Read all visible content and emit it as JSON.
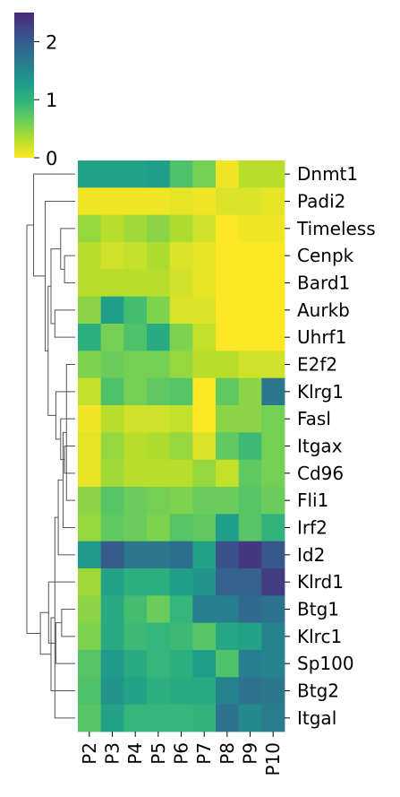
{
  "chart_data": {
    "type": "heatmap",
    "title": "",
    "xlabel": "",
    "ylabel": "",
    "colormap": "viridis_r",
    "colorbar": {
      "range": [
        0,
        2.5
      ],
      "ticks": [
        0,
        1,
        2
      ],
      "tick_labels": [
        "0",
        "1",
        "2"
      ]
    },
    "columns": [
      "P2",
      "P3",
      "P4",
      "P5",
      "P6",
      "P7",
      "P8",
      "P9",
      "P10"
    ],
    "rows": [
      "Dnmt1",
      "Padi2",
      "Timeless",
      "Cenpk",
      "Bard1",
      "Aurkb",
      "Uhrf1",
      "E2f2",
      "Klrg1",
      "Fasl",
      "Itgax",
      "Cd96",
      "Fli1",
      "Irf2",
      "Id2",
      "Klrd1",
      "Btg1",
      "Klrc1",
      "Sp100",
      "Btg2",
      "Itgal"
    ],
    "values": [
      [
        1.2,
        1.2,
        1.2,
        1.25,
        0.8,
        0.6,
        0.05,
        0.3,
        0.3
      ],
      [
        0.05,
        0.05,
        0.05,
        0.05,
        0.1,
        0.05,
        0.15,
        0.15,
        0.1
      ],
      [
        0.45,
        0.3,
        0.4,
        0.5,
        0.35,
        0.2,
        0.0,
        0.05,
        0.05
      ],
      [
        0.3,
        0.2,
        0.25,
        0.35,
        0.15,
        0.1,
        0.0,
        0.0,
        0.0
      ],
      [
        0.3,
        0.3,
        0.3,
        0.3,
        0.2,
        0.1,
        0.0,
        0.0,
        0.0
      ],
      [
        0.5,
        1.25,
        0.85,
        0.55,
        0.15,
        0.15,
        0.0,
        0.0,
        0.0
      ],
      [
        1.05,
        0.6,
        0.8,
        1.1,
        0.55,
        0.25,
        0.0,
        0.0,
        0.0
      ],
      [
        0.55,
        0.65,
        0.6,
        0.6,
        0.45,
        0.3,
        0.3,
        0.2,
        0.2
      ],
      [
        0.25,
        0.8,
        0.6,
        0.7,
        0.75,
        0.0,
        0.7,
        0.5,
        1.7
      ],
      [
        0.05,
        0.3,
        0.2,
        0.2,
        0.25,
        0.0,
        0.5,
        0.5,
        0.6
      ],
      [
        0.1,
        0.45,
        0.3,
        0.35,
        0.45,
        0.15,
        0.7,
        0.9,
        0.6
      ],
      [
        0.1,
        0.4,
        0.3,
        0.3,
        0.3,
        0.45,
        0.25,
        0.7,
        0.6
      ],
      [
        0.5,
        0.75,
        0.65,
        0.6,
        0.55,
        0.65,
        0.65,
        0.75,
        0.65
      ],
      [
        0.45,
        0.7,
        0.65,
        0.55,
        0.75,
        0.7,
        1.25,
        0.75,
        1.0
      ],
      [
        1.3,
        2.0,
        1.7,
        1.7,
        1.8,
        1.2,
        2.1,
        2.35,
        2.05
      ],
      [
        0.4,
        1.2,
        1.05,
        1.05,
        1.25,
        1.35,
        1.95,
        1.95,
        2.3
      ],
      [
        0.5,
        1.1,
        0.85,
        0.65,
        0.95,
        1.6,
        1.6,
        1.85,
        1.75
      ],
      [
        0.55,
        1.1,
        0.9,
        0.95,
        0.9,
        0.75,
        1.15,
        1.2,
        1.55
      ],
      [
        0.75,
        1.3,
        1.1,
        0.95,
        1.05,
        1.25,
        0.8,
        1.6,
        1.55
      ],
      [
        0.8,
        1.35,
        1.2,
        1.05,
        1.1,
        1.1,
        1.55,
        1.75,
        1.7
      ],
      [
        0.75,
        1.2,
        0.95,
        0.95,
        0.95,
        1.0,
        1.75,
        1.5,
        1.65
      ]
    ],
    "dendrogram": {
      "side": "left",
      "merges": [
        [
          7,
          12,
          0.18
        ],
        [
          13,
          21,
          0.25
        ],
        [
          14,
          22,
          0.35
        ],
        [
          20,
          23,
          0.42
        ],
        [
          19,
          24,
          0.5
        ],
        [
          16,
          17,
          0.28
        ],
        [
          18,
          26,
          0.4
        ],
        [
          15,
          27,
          0.55
        ],
        [
          25,
          28,
          0.72
        ],
        [
          10,
          11,
          0.22
        ],
        [
          9,
          30,
          0.3
        ],
        [
          8,
          31,
          0.4
        ],
        [
          3,
          4,
          0.22
        ],
        [
          2,
          33,
          0.3
        ],
        [
          5,
          6,
          0.42
        ],
        [
          34,
          35,
          0.5
        ],
        [
          32,
          36,
          0.56
        ],
        [
          1,
          37,
          0.62
        ],
        [
          0,
          38,
          0.86
        ],
        [
          29,
          39,
          1.0
        ]
      ]
    }
  }
}
